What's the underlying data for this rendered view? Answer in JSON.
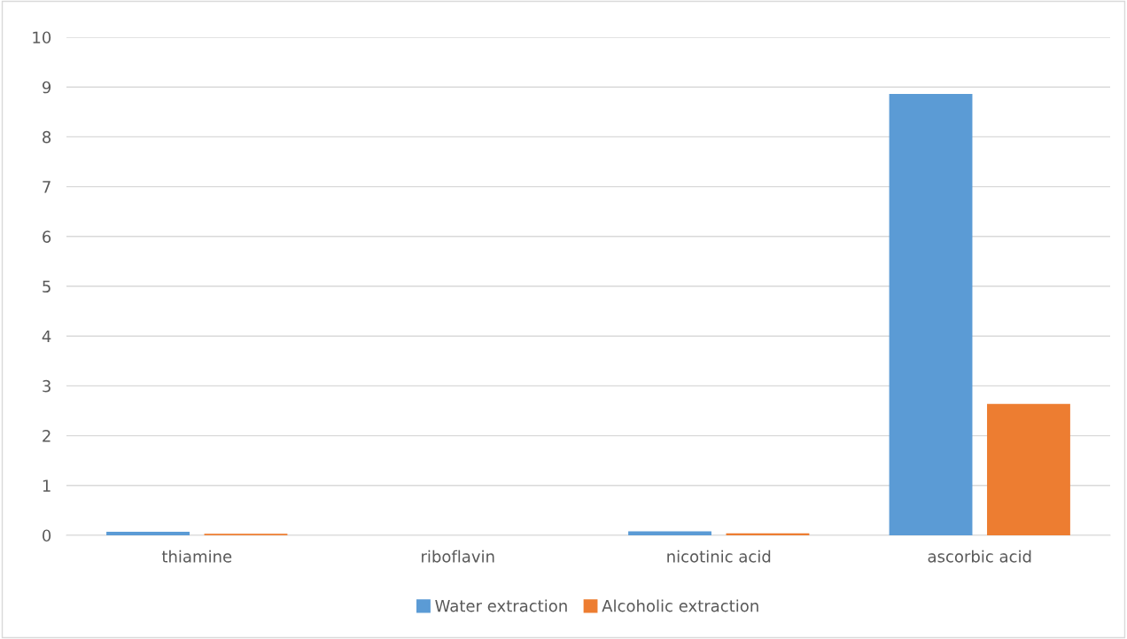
{
  "chart_data": {
    "type": "bar",
    "categories": [
      "thiamine",
      "riboflavin",
      "nicotinic acid",
      "ascorbic acid"
    ],
    "series": [
      {
        "name": "Water extraction",
        "color": "#5b9bd5",
        "values": [
          0.07,
          0,
          0.08,
          8.86
        ]
      },
      {
        "name": "Alcoholic extraction",
        "color": "#ed7d31",
        "values": [
          0.03,
          0,
          0.04,
          2.64
        ]
      }
    ],
    "ylim": [
      0,
      10
    ],
    "yticks": [
      0,
      1,
      2,
      3,
      4,
      5,
      6,
      7,
      8,
      9,
      10
    ],
    "grid": "y",
    "legend": "bottom"
  }
}
